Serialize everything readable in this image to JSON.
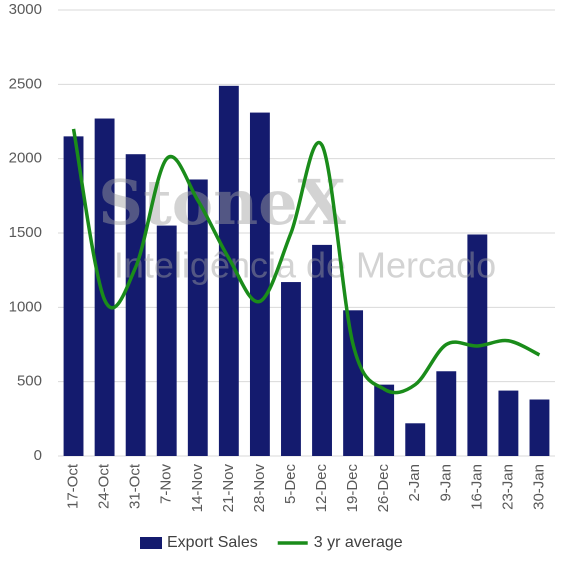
{
  "chart_data": {
    "type": "bar",
    "watermark_title": "StoneX",
    "watermark_subtitle": "Inteligência de Mercado",
    "categories": [
      "17-Oct",
      "24-Oct",
      "31-Oct",
      "7-Nov",
      "14-Nov",
      "21-Nov",
      "28-Nov",
      "5-Dec",
      "12-Dec",
      "19-Dec",
      "26-Dec",
      "2-Jan",
      "9-Jan",
      "16-Jan",
      "23-Jan",
      "30-Jan"
    ],
    "series": [
      {
        "name": "Export Sales",
        "type": "bar",
        "color": "#141b6e",
        "values": [
          2150,
          2270,
          2030,
          1550,
          1860,
          2490,
          2310,
          1170,
          1420,
          980,
          480,
          220,
          570,
          1490,
          440,
          380
        ]
      },
      {
        "name": "3 yr average",
        "type": "line",
        "smooth": true,
        "color": "#1a8c1a",
        "values": [
          2200,
          1050,
          1270,
          2000,
          1720,
          1330,
          1040,
          1500,
          2090,
          750,
          450,
          480,
          750,
          740,
          775,
          680
        ]
      }
    ],
    "ylim": [
      0,
      3000
    ],
    "yticks": [
      0,
      500,
      1000,
      1500,
      2000,
      2500,
      3000
    ],
    "grid": true,
    "legend": "bottom"
  }
}
